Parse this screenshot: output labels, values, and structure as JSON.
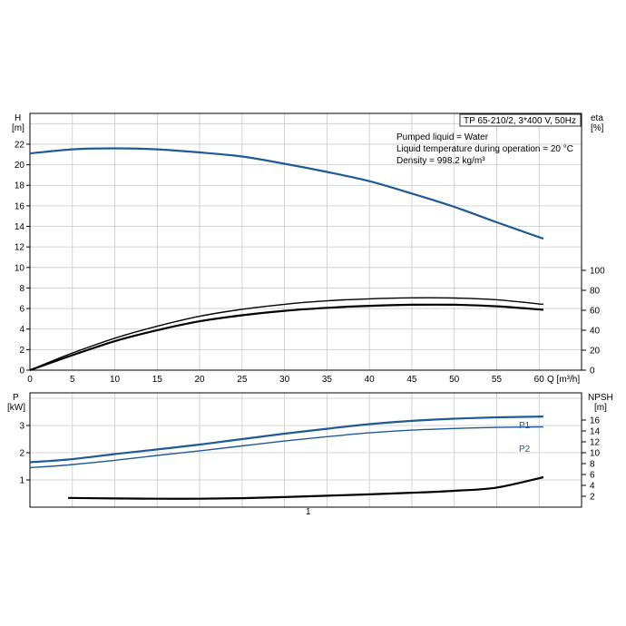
{
  "chart_data": [
    {
      "type": "line",
      "panel": "H / eta vs Q",
      "info": {
        "model": "TP 65-210/2, 3*400 V, 50Hz",
        "lines": [
          "Pumped liquid = Water",
          "Liquid temperature during operation = 20 °C",
          "Density = 998.2 kg/m³"
        ]
      },
      "left_axis_label": [
        "H",
        "[m]"
      ],
      "right_axis_label": [
        "eta",
        "[%]"
      ],
      "x_axis_label": "Q [m³/h]",
      "xlim": [
        0,
        65
      ],
      "ylim_left": [
        0,
        25
      ],
      "ylim_right": [
        0,
        100
      ],
      "x_ticks": [
        "0",
        "5",
        "10",
        "15",
        "20",
        "25",
        "30",
        "35",
        "40",
        "45",
        "50",
        "55",
        "60"
      ],
      "y_ticks_left": [
        "0",
        "2",
        "4",
        "6",
        "8",
        "10",
        "12",
        "14",
        "16",
        "18",
        "20",
        "22"
      ],
      "y_ticks_right": [
        "0",
        "20",
        "40",
        "60",
        "80",
        "100"
      ],
      "grid": true,
      "series": [
        {
          "axis": "left",
          "color": "#1f5a96",
          "x": [
            0,
            5,
            10,
            15,
            20,
            25,
            30,
            35,
            40,
            45,
            50,
            55,
            60.5
          ],
          "values": [
            21.1,
            21.5,
            21.6,
            21.5,
            21.2,
            20.8,
            20.1,
            19.3,
            18.4,
            17.2,
            15.9,
            14.4,
            12.8
          ]
        },
        {
          "axis": "right",
          "color": "#000000",
          "x": [
            0,
            4.5,
            10,
            15,
            20,
            25,
            30,
            35,
            40,
            45,
            50,
            55,
            60.5
          ],
          "values": [
            0,
            15.5,
            32,
            44,
            54,
            61,
            66,
            69.5,
            71.5,
            72.5,
            72.3,
            70.5,
            66
          ]
        },
        {
          "axis": "right",
          "color": "#000000",
          "x": [
            0,
            4.5,
            10,
            15,
            20,
            25,
            30,
            35,
            40,
            45,
            50,
            55,
            60.5
          ],
          "values": [
            0,
            13.5,
            29,
            40,
            49,
            55,
            59.5,
            62.5,
            64.5,
            65.5,
            65.5,
            64,
            60.5
          ]
        }
      ]
    },
    {
      "type": "line",
      "panel": "P / NPSH vs Q",
      "left_axis_label": [
        "P",
        "[kW]"
      ],
      "right_axis_label": [
        "NPSH",
        "[m]"
      ],
      "xlim": [
        0,
        65
      ],
      "ylim_left": [
        0,
        4.2
      ],
      "ylim_right": [
        0,
        21
      ],
      "y_ticks_left": [
        "1",
        "2",
        "3"
      ],
      "y_ticks_right": [
        "2",
        "4",
        "6",
        "8",
        "10",
        "12",
        "14",
        "16"
      ],
      "x_label_note": "1",
      "grid": true,
      "series": [
        {
          "name": "P1",
          "axis": "left",
          "color": "#1f5a96",
          "x": [
            0,
            4.5,
            10,
            15,
            20,
            25,
            30,
            35,
            40,
            45,
            50,
            55,
            60.5
          ],
          "values": [
            1.65,
            1.75,
            1.95,
            2.12,
            2.3,
            2.5,
            2.7,
            2.88,
            3.05,
            3.17,
            3.25,
            3.3,
            3.33
          ]
        },
        {
          "name": "P2",
          "axis": "left",
          "color": "#1f5a96",
          "x": [
            0,
            4.5,
            10,
            15,
            20,
            25,
            30,
            35,
            40,
            45,
            50,
            55,
            60.5
          ],
          "values": [
            1.45,
            1.55,
            1.72,
            1.9,
            2.07,
            2.25,
            2.43,
            2.59,
            2.73,
            2.83,
            2.89,
            2.93,
            2.95
          ]
        },
        {
          "axis": "right",
          "color": "#000000",
          "x": [
            4.5,
            10,
            15,
            20,
            25,
            30,
            35,
            40,
            45,
            50,
            55,
            60.5
          ],
          "values": [
            1.7,
            1.6,
            1.55,
            1.55,
            1.65,
            1.85,
            2.1,
            2.35,
            2.65,
            3.0,
            3.6,
            5.5
          ]
        }
      ]
    }
  ]
}
